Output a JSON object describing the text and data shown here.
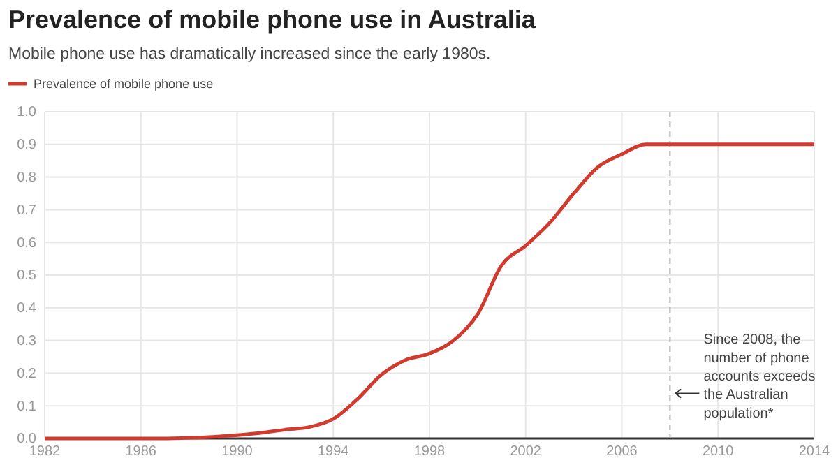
{
  "chart_data": {
    "type": "line",
    "title": "Prevalence of mobile phone use in Australia",
    "subtitle": "Mobile phone use has dramatically increased since the early 1980s.",
    "x": [
      1982,
      1983,
      1984,
      1985,
      1986,
      1987,
      1988,
      1989,
      1990,
      1991,
      1992,
      1993,
      1994,
      1995,
      1996,
      1997,
      1998,
      1999,
      2000,
      2001,
      2002,
      2003,
      2004,
      2005,
      2006,
      2007,
      2008,
      2009,
      2010,
      2011,
      2012,
      2013,
      2014
    ],
    "series": [
      {
        "name": "Prevalence of mobile phone use",
        "color": "#d13b2e",
        "values": [
          0,
          0,
          0,
          0,
          0,
          0,
          0.002,
          0.005,
          0.01,
          0.017,
          0.027,
          0.035,
          0.06,
          0.12,
          0.195,
          0.24,
          0.26,
          0.3,
          0.38,
          0.53,
          0.59,
          0.66,
          0.75,
          0.83,
          0.87,
          0.9,
          0.9,
          0.9,
          0.9,
          0.9,
          0.9,
          0.9,
          0.9
        ]
      }
    ],
    "xlim": [
      1982,
      2014
    ],
    "xticks": [
      1982,
      1986,
      1990,
      1994,
      1998,
      2002,
      2006,
      2010,
      2014
    ],
    "ylim": [
      0,
      1
    ],
    "yticks": [
      {
        "value": 0,
        "label": "0.0"
      },
      0.1,
      0.2,
      0.3,
      0.4,
      0.5,
      0.6,
      0.7,
      0.8,
      0.9,
      {
        "value": 1,
        "label": "1.0"
      }
    ],
    "grid": true,
    "legend": "top left",
    "marker": "none",
    "line_style": "solid",
    "ref_lines": [
      {
        "axis": "x",
        "value": 2008,
        "label": "Since 2008, the number of phone accounts exceeds the Australian population*",
        "color": "#aaaaaa",
        "line_style": "dashed"
      }
    ]
  }
}
